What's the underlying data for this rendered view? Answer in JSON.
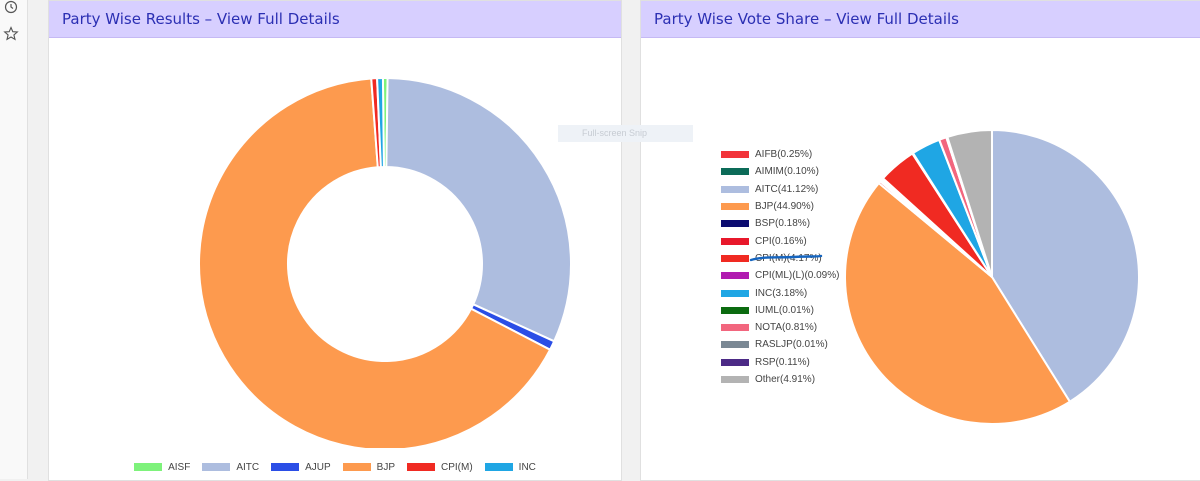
{
  "sidebar": {
    "icons": [
      "history-icon",
      "star-icon"
    ]
  },
  "panel_left": {
    "title": "Party Wise Results – View Full Details"
  },
  "panel_right": {
    "title": "Party Wise Vote Share – View Full Details"
  },
  "overlay": {
    "snip_label": "Full-screen Snip"
  },
  "chart_data": [
    {
      "type": "pie",
      "subtype": "doughnut",
      "title": "Party Wise Results – View Full Details",
      "categories": [
        "AISF",
        "AITC",
        "AJUP",
        "BJP",
        "CPI(M)",
        "INC"
      ],
      "values": [
        0.4,
        31.6,
        0.8,
        66.2,
        0.5,
        0.5
      ],
      "colors": [
        "#7ef27b",
        "#adbddf",
        "#2b4ee6",
        "#fd9a4e",
        "#f02a22",
        "#1fa6e4"
      ],
      "legend": "bottom"
    },
    {
      "type": "pie",
      "title": "Party Wise Vote Share – View Full Details",
      "categories": [
        "AIFB",
        "AIMIM",
        "AITC",
        "BJP",
        "BSP",
        "CPI",
        "CPI(M)",
        "CPI(ML)(L)",
        "INC",
        "IUML",
        "NOTA",
        "RASLJP",
        "RSP",
        "Other"
      ],
      "values": [
        0.25,
        0.1,
        41.12,
        44.9,
        0.18,
        0.16,
        4.17,
        0.09,
        3.18,
        0.01,
        0.81,
        0.01,
        0.11,
        4.91
      ],
      "labels": [
        "AIFB(0.25%)",
        "AIMIM(0.10%)",
        "AITC(41.12%)",
        "BJP(44.90%)",
        "BSP(0.18%)",
        "CPI(0.16%)",
        "CPI(M)(4.17%)",
        "CPI(ML)(L)(0.09%)",
        "INC(3.18%)",
        "IUML(0.01%)",
        "NOTA(0.81%)",
        "RASLJP(0.01%)",
        "RSP(0.11%)",
        "Other(4.91%)"
      ],
      "colors": [
        "#f2343a",
        "#0c6b58",
        "#adbddf",
        "#fd9a4e",
        "#0b0b70",
        "#e8182b",
        "#f02a22",
        "#b11bb0",
        "#1fa6e4",
        "#0b6b10",
        "#f2667e",
        "#7a8894",
        "#4c2a86",
        "#b3b3b3"
      ],
      "legend": "left"
    }
  ]
}
